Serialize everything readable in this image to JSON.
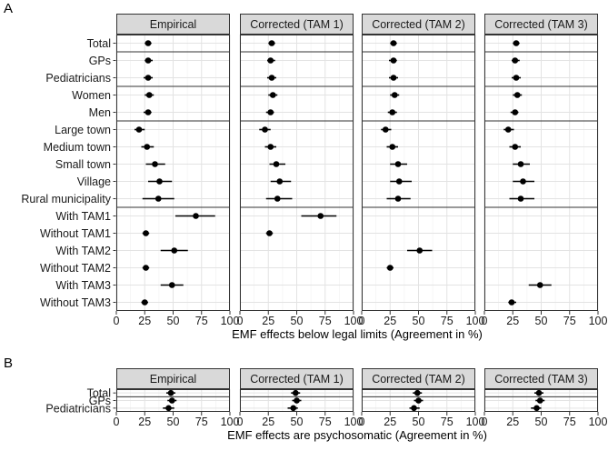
{
  "chart_data": [
    {
      "type": "scatter",
      "panel_label": "A",
      "facets": [
        "Empirical",
        "Corrected (TAM 1)",
        "Corrected (TAM 2)",
        "Corrected (TAM 3)"
      ],
      "xlabel": "EMF effects below legal limits (Agreement in %)",
      "xlim": [
        0,
        100
      ],
      "xticks": [
        0,
        25,
        50,
        75,
        100
      ],
      "grid": true,
      "categories": [
        "Total",
        "GPs",
        "Pediatricians",
        "Women",
        "Men",
        "Large town",
        "Medium town",
        "Small town",
        "Village",
        "Rural municipality",
        "With TAM1",
        "Without TAM1",
        "With TAM2",
        "Without TAM2",
        "With TAM3",
        "Without TAM3"
      ],
      "group_separators_after": [
        "Total",
        "Pediatricians",
        "Men",
        "Rural municipality"
      ],
      "series": [
        {
          "name": "Empirical",
          "points": [
            {
              "category": "Total",
              "value": 28,
              "low": 25,
              "high": 31
            },
            {
              "category": "GPs",
              "value": 28,
              "low": 25,
              "high": 32
            },
            {
              "category": "Pediatricians",
              "value": 28,
              "low": 24,
              "high": 32
            },
            {
              "category": "Women",
              "value": 29,
              "low": 25,
              "high": 33
            },
            {
              "category": "Men",
              "value": 28,
              "low": 24,
              "high": 31
            },
            {
              "category": "Large town",
              "value": 20,
              "low": 16,
              "high": 25
            },
            {
              "category": "Medium town",
              "value": 27,
              "low": 22,
              "high": 33
            },
            {
              "category": "Small town",
              "value": 34,
              "low": 26,
              "high": 43
            },
            {
              "category": "Village",
              "value": 38,
              "low": 28,
              "high": 49
            },
            {
              "category": "Rural municipality",
              "value": 37,
              "low": 23,
              "high": 51
            },
            {
              "category": "With TAM1",
              "value": 70,
              "low": 52,
              "high": 87
            },
            {
              "category": "Without TAM1",
              "value": 26,
              "low": 23,
              "high": 29
            },
            {
              "category": "With TAM2",
              "value": 51,
              "low": 39,
              "high": 63
            },
            {
              "category": "Without TAM2",
              "value": 26,
              "low": 23,
              "high": 29
            },
            {
              "category": "With TAM3",
              "value": 49,
              "low": 39,
              "high": 59
            },
            {
              "category": "Without TAM3",
              "value": 25,
              "low": 22,
              "high": 28
            }
          ]
        },
        {
          "name": "Corrected (TAM 1)",
          "points": [
            {
              "category": "Total",
              "value": 28,
              "low": 25,
              "high": 31
            },
            {
              "category": "GPs",
              "value": 27,
              "low": 24,
              "high": 31
            },
            {
              "category": "Pediatricians",
              "value": 28,
              "low": 24,
              "high": 32
            },
            {
              "category": "Women",
              "value": 29,
              "low": 25,
              "high": 33
            },
            {
              "category": "Men",
              "value": 27,
              "low": 23,
              "high": 30
            },
            {
              "category": "Large town",
              "value": 22,
              "low": 17,
              "high": 27
            },
            {
              "category": "Medium town",
              "value": 27,
              "low": 22,
              "high": 32
            },
            {
              "category": "Small town",
              "value": 32,
              "low": 26,
              "high": 40
            },
            {
              "category": "Village",
              "value": 35,
              "low": 27,
              "high": 45
            },
            {
              "category": "Rural municipality",
              "value": 33,
              "low": 23,
              "high": 46
            },
            {
              "category": "With TAM1",
              "value": 71,
              "low": 54,
              "high": 85
            },
            {
              "category": "Without TAM1",
              "value": 26,
              "low": 23,
              "high": 29
            }
          ]
        },
        {
          "name": "Corrected (TAM 2)",
          "points": [
            {
              "category": "Total",
              "value": 28,
              "low": 25,
              "high": 31
            },
            {
              "category": "GPs",
              "value": 28,
              "low": 24,
              "high": 31
            },
            {
              "category": "Pediatricians",
              "value": 28,
              "low": 24,
              "high": 32
            },
            {
              "category": "Women",
              "value": 29,
              "low": 25,
              "high": 33
            },
            {
              "category": "Men",
              "value": 27,
              "low": 23,
              "high": 31
            },
            {
              "category": "Large town",
              "value": 21,
              "low": 17,
              "high": 26
            },
            {
              "category": "Medium town",
              "value": 27,
              "low": 22,
              "high": 32
            },
            {
              "category": "Small town",
              "value": 32,
              "low": 25,
              "high": 40
            },
            {
              "category": "Village",
              "value": 33,
              "low": 25,
              "high": 44
            },
            {
              "category": "Rural municipality",
              "value": 32,
              "low": 22,
              "high": 43
            },
            {
              "category": "With TAM2",
              "value": 51,
              "low": 40,
              "high": 62
            },
            {
              "category": "Without TAM2",
              "value": 25,
              "low": 22,
              "high": 28
            }
          ]
        },
        {
          "name": "Corrected (TAM 3)",
          "points": [
            {
              "category": "Total",
              "value": 28,
              "low": 25,
              "high": 31
            },
            {
              "category": "GPs",
              "value": 27,
              "low": 24,
              "high": 31
            },
            {
              "category": "Pediatricians",
              "value": 28,
              "low": 24,
              "high": 32
            },
            {
              "category": "Women",
              "value": 29,
              "low": 25,
              "high": 33
            },
            {
              "category": "Men",
              "value": 27,
              "low": 23,
              "high": 30
            },
            {
              "category": "Large town",
              "value": 21,
              "low": 17,
              "high": 26
            },
            {
              "category": "Medium town",
              "value": 27,
              "low": 22,
              "high": 32
            },
            {
              "category": "Small town",
              "value": 32,
              "low": 25,
              "high": 40
            },
            {
              "category": "Village",
              "value": 34,
              "low": 25,
              "high": 44
            },
            {
              "category": "Rural municipality",
              "value": 32,
              "low": 22,
              "high": 44
            },
            {
              "category": "With TAM3",
              "value": 49,
              "low": 39,
              "high": 59
            },
            {
              "category": "Without TAM3",
              "value": 24,
              "low": 21,
              "high": 28
            }
          ]
        }
      ]
    },
    {
      "type": "scatter",
      "panel_label": "B",
      "facets": [
        "Empirical",
        "Corrected (TAM 1)",
        "Corrected (TAM 2)",
        "Corrected (TAM 3)"
      ],
      "xlabel": "EMF effects are psychosomatic (Agreement in %)",
      "xlim": [
        0,
        100
      ],
      "xticks": [
        0,
        25,
        50,
        75,
        100
      ],
      "grid": true,
      "categories": [
        "Total",
        "GPs",
        "Pediatricians"
      ],
      "group_separators_after": [
        "Total"
      ],
      "series": [
        {
          "name": "Empirical",
          "points": [
            {
              "category": "Total",
              "value": 48,
              "low": 44,
              "high": 52
            },
            {
              "category": "GPs",
              "value": 49,
              "low": 45,
              "high": 53
            },
            {
              "category": "Pediatricians",
              "value": 46,
              "low": 41,
              "high": 51
            }
          ]
        },
        {
          "name": "Corrected (TAM 1)",
          "points": [
            {
              "category": "Total",
              "value": 49,
              "low": 45,
              "high": 53
            },
            {
              "category": "GPs",
              "value": 50,
              "low": 46,
              "high": 54
            },
            {
              "category": "Pediatricians",
              "value": 47,
              "low": 42,
              "high": 51
            }
          ]
        },
        {
          "name": "Corrected (TAM 2)",
          "points": [
            {
              "category": "Total",
              "value": 49,
              "low": 45,
              "high": 53
            },
            {
              "category": "GPs",
              "value": 50,
              "low": 46,
              "high": 54
            },
            {
              "category": "Pediatricians",
              "value": 46,
              "low": 42,
              "high": 51
            }
          ]
        },
        {
          "name": "Corrected (TAM 3)",
          "points": [
            {
              "category": "Total",
              "value": 48,
              "low": 44,
              "high": 52
            },
            {
              "category": "GPs",
              "value": 49,
              "low": 45,
              "high": 53
            },
            {
              "category": "Pediatricians",
              "value": 46,
              "low": 41,
              "high": 50
            }
          ]
        }
      ]
    }
  ]
}
